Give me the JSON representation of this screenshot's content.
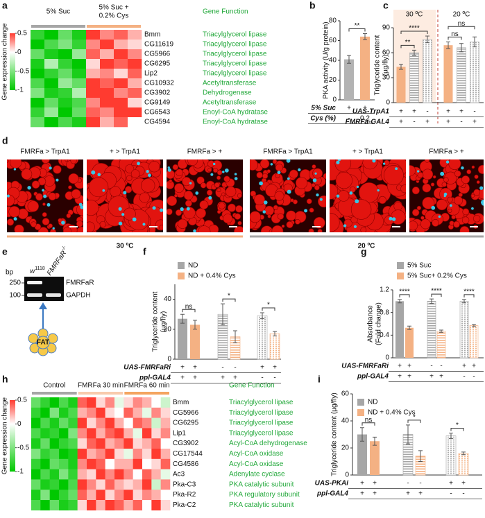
{
  "panel_labels": [
    "a",
    "b",
    "c",
    "d",
    "e",
    "f",
    "g",
    "h",
    "i"
  ],
  "chart_data": [
    {
      "type": "heatmap",
      "groups": [
        [
          "5% Suc"
        ],
        [
          "5% Suc +",
          "0.2% Cys"
        ]
      ],
      "group_colors": [
        "#a6a6a6",
        "#f4b183"
      ],
      "function_header": "Gene Function",
      "rows": [
        "Bmm",
        "CG11619",
        "CG5966",
        "CG6295",
        "Lip2",
        "CG10932",
        "CG3902",
        "CG9149",
        "CG6543",
        "CG4594"
      ],
      "functions": [
        "Triacylglycerol lipase",
        "Triacylglycerol lipase",
        "Triacylglycerol lipase",
        "Triacylglycerol lipase",
        "Triacylglycerol lipase",
        "Acetyltransferase",
        "Dehydrogenase",
        "Acetyltransferase",
        "Enoyl-CoA hydratase",
        "Enoyl-CoA hydratase"
      ],
      "values": [
        [
          -0.8,
          -1,
          -0.6,
          -0.9,
          0.5,
          0.3,
          0.4,
          0.2
        ],
        [
          -1,
          -0.7,
          -0.5,
          -0.8,
          0.3,
          0.5,
          0.2,
          0.1
        ],
        [
          -0.6,
          -0.9,
          -1,
          -0.4,
          0.4,
          0.2,
          0.5,
          0.3
        ],
        [
          -0.9,
          -0.3,
          -0.8,
          -1,
          0.1,
          0.5,
          0.4,
          0.5
        ],
        [
          -1,
          -0.8,
          -0.6,
          -0.9,
          0.2,
          0.3,
          0.1,
          0.4
        ],
        [
          -0.7,
          -1,
          -0.4,
          -0.6,
          0.5,
          0.4,
          0.5,
          0.2
        ],
        [
          -0.5,
          -0.9,
          -0.8,
          -0.3,
          0.5,
          0.5,
          0.3,
          0.4
        ],
        [
          -1,
          -0.6,
          -0.9,
          -0.7,
          0.3,
          0.5,
          0.5,
          0.1
        ],
        [
          -0.8,
          -0.4,
          -1,
          -0.6,
          0.4,
          0.3,
          0.5,
          0.5
        ],
        [
          -0.6,
          -1,
          -0.7,
          -0.9,
          0.5,
          0.2,
          0.4,
          0
        ]
      ],
      "vlim": [
        -1,
        0.5
      ],
      "colors": {
        "low": "#00c800",
        "mid": "#ffffff",
        "high": "#ff3b30"
      },
      "colorbar": {
        "label": "Gene expression change",
        "ticks": [
          0.5,
          0,
          -0.5,
          -1
        ]
      }
    },
    {
      "type": "bar",
      "ylabel": [
        "PKA activity (U/g protein)"
      ],
      "ylim": [
        0,
        80
      ],
      "yticks": [
        0,
        20,
        40,
        60,
        80
      ],
      "values": [
        41,
        64
      ],
      "errors": [
        4,
        3
      ],
      "colors": [
        "#b3b3b3",
        "#f4b183"
      ],
      "annotations": [
        "**"
      ],
      "conditions": [
        {
          "label": "5% Suc",
          "values": [
            "+",
            "+"
          ]
        },
        {
          "label": "Cys (%)",
          "values": [
            "-",
            "0.2"
          ]
        }
      ]
    },
    {
      "type": "bar",
      "ylabel": [
        "Triglyceride content",
        "(µg/fly)"
      ],
      "ylim": [
        0,
        90
      ],
      "yticks": [
        0,
        30,
        60,
        90
      ],
      "values": [
        43,
        60,
        76,
        69,
        66,
        73
      ],
      "errors": [
        3,
        3,
        4,
        4,
        5,
        6
      ],
      "colors": [
        "#f4b183",
        "#a6a6a6",
        "#a6a6a6",
        "#f4b183",
        "#a6a6a6",
        "#a6a6a6"
      ],
      "group_labels": [
        "30 ºC",
        "20 ºC"
      ],
      "group_label_color": "#e0603c",
      "annotations": [
        "**",
        "****",
        "ns",
        "ns"
      ],
      "conditions": [
        {
          "label": "UAS-TrpA1",
          "values": [
            "+",
            "+",
            "-",
            "+",
            "+",
            "-"
          ]
        },
        {
          "label": "FMRFa-GAL4",
          "values": [
            "+",
            "-",
            "+",
            "+",
            "-",
            "+"
          ]
        }
      ]
    },
    {
      "type": "grouped_bar",
      "ylabel": [
        "Triglyceride content",
        "(µg/fly)"
      ],
      "ylim": [
        0,
        50
      ],
      "yticks": [
        0,
        20,
        40
      ],
      "series": [
        {
          "name": "ND",
          "color": "#a6a6a6",
          "values": [
            27,
            30,
            29
          ],
          "errors": [
            3,
            7,
            2
          ]
        },
        {
          "name": "ND + 0.4% Cys",
          "color": "#f4b183",
          "values": [
            23,
            15,
            17
          ],
          "errors": [
            3,
            4,
            1.5
          ]
        }
      ],
      "annotations": [
        "ns",
        "*",
        "*"
      ],
      "conditions": [
        {
          "label": "UAS-FMRFaRi",
          "values": [
            "+",
            "+",
            "-",
            "-",
            "+",
            "+"
          ]
        },
        {
          "label": "ppl-GAL4",
          "values": [
            "+",
            "+",
            "+",
            "+",
            "-",
            "-"
          ]
        }
      ]
    },
    {
      "type": "grouped_bar",
      "ylabel": [
        "Absorbance",
        "(Fold change)"
      ],
      "ylim": [
        0,
        1.2
      ],
      "yticks": [
        0,
        0.4,
        0.8,
        1.2
      ],
      "series": [
        {
          "name": "5% Suc",
          "color": "#a6a6a6",
          "values": [
            1.0,
            1.0,
            1.0
          ],
          "errors": [
            0.03,
            0.04,
            0.03
          ]
        },
        {
          "name": "5% Suc+ 0.2% Cys",
          "color": "#f4b183",
          "values": [
            0.53,
            0.47,
            0.57
          ],
          "errors": [
            0.03,
            0.02,
            0.02
          ]
        }
      ],
      "annotations": [
        "****",
        "****",
        "****"
      ],
      "conditions": [
        {
          "label": "UAS-FMRFaRi",
          "values": [
            "+",
            "+",
            "-",
            "-",
            "+",
            "+"
          ]
        },
        {
          "label": "ppl-GAL4",
          "values": [
            "+",
            "+",
            "+",
            "+",
            "-",
            "-"
          ]
        }
      ]
    },
    {
      "type": "heatmap",
      "groups": [
        [
          "Control"
        ],
        [
          "FMRFa 30 min"
        ],
        [
          "FMRFa 60 min"
        ]
      ],
      "group_colors": [
        "#a6a6a6",
        "#f8cbad",
        "#f4a460"
      ],
      "function_header": "Gene Function",
      "rows": [
        "Bmm",
        "CG5966",
        "CG6295",
        "Lip1",
        "CG3902",
        "CG17544",
        "CG4586",
        "Ac3",
        "Pka-C3",
        "Pka-R2",
        "Pka-C2"
      ],
      "functions": [
        "Triacylglycerol lipase",
        "Triacylglycerol lipase",
        "Triacylglycerol lipase",
        "Triacylglycerol lipase",
        "Acyl-CoA dehydrogenase",
        "Acyl-CoA oxidase",
        "Acyl-CoA oxidase",
        "Adenylate cyclase",
        "PKA catalytic subunit",
        "PKA regulatory subunit",
        "PKA catalytic subunit"
      ],
      "values": [
        [
          -0.6,
          -0.8,
          -1,
          -0.7,
          -0.9,
          0.4,
          0.5,
          0.1,
          0.3,
          -0.1,
          0.1,
          0.3,
          0.2,
          0,
          -0.2
        ],
        [
          -0.8,
          -1,
          -0.5,
          -0.9,
          -0.7,
          0.2,
          0.3,
          0.5,
          0.1,
          0,
          0.4,
          0.2,
          -0.1,
          0.3,
          0.1
        ],
        [
          -1,
          -0.7,
          -0.9,
          -0.6,
          -0.8,
          0.5,
          0.1,
          0.3,
          0.5,
          0.2,
          0,
          0.4,
          0.3,
          -0.2,
          0.2
        ],
        [
          -0.7,
          -0.9,
          -0.8,
          -1,
          -0.5,
          0.3,
          0.5,
          0.2,
          0.4,
          0.5,
          0.2,
          -0.1,
          0.5,
          0.1,
          0.3
        ],
        [
          -0.9,
          -0.6,
          -1,
          -0.8,
          -0.7,
          0.1,
          0.4,
          0.5,
          0.2,
          0.3,
          0.5,
          0.1,
          0.2,
          0.4,
          0
        ],
        [
          -0.5,
          -0.8,
          -0.7,
          -1,
          -0.9,
          0.5,
          0.2,
          0.3,
          0.5,
          0.1,
          -0.1,
          0.3,
          0.1,
          0.5,
          0.2
        ],
        [
          -0.8,
          -1,
          -0.6,
          -0.7,
          -0.9,
          0.3,
          0.5,
          0.4,
          0,
          0.2,
          0.2,
          0.5,
          0,
          0.1,
          0.4
        ],
        [
          -1,
          -0.7,
          -0.9,
          -0.5,
          -0.8,
          0.2,
          0.1,
          0.5,
          0.3,
          0.5,
          0.3,
          0,
          0.4,
          0.2,
          -0.1
        ],
        [
          -0.6,
          -0.9,
          -0.8,
          -1,
          -0.7,
          0.5,
          0.3,
          0.1,
          0.4,
          0.2,
          0.1,
          0.2,
          0.5,
          -0.2,
          0.3
        ],
        [
          -0.9,
          -0.5,
          -1,
          -0.8,
          -0.6,
          0.4,
          0.2,
          0.5,
          0.1,
          0.3,
          0.5,
          0.1,
          0.3,
          0.2,
          0
        ],
        [
          -0.7,
          -1,
          -0.6,
          -0.9,
          -0.8,
          0.1,
          0.5,
          0.2,
          0.5,
          0.4,
          0.2,
          0.4,
          0,
          0.5,
          0.1
        ]
      ],
      "vlim": [
        -1,
        0.5
      ],
      "colors": {
        "low": "#00c800",
        "mid": "#ffffff",
        "high": "#ff3b30"
      },
      "colorbar": {
        "label": "Gene expression change",
        "ticks": [
          0.5,
          0,
          -0.5,
          -1
        ]
      }
    },
    {
      "type": "grouped_bar",
      "ylabel": [
        "Triglyceride content (µg/fly)"
      ],
      "ylim": [
        0,
        60
      ],
      "yticks": [
        0,
        20,
        40,
        60
      ],
      "series": [
        {
          "name": "ND",
          "color": "#a6a6a6",
          "values": [
            30,
            30,
            29
          ],
          "errors": [
            5,
            7,
            2
          ]
        },
        {
          "name": "ND + 0.4% Cys",
          "color": "#f4b183",
          "values": [
            25,
            14,
            16
          ],
          "errors": [
            3,
            4,
            1
          ]
        }
      ],
      "annotations": [
        "ns",
        "*",
        "*"
      ],
      "conditions": [
        {
          "label": "UAS-PKAi",
          "values": [
            "+",
            "+",
            "-",
            "-",
            "+",
            "+"
          ]
        },
        {
          "label": "ppl-GAL4",
          "values": [
            "+",
            "+",
            "+",
            "+",
            "-",
            "-"
          ]
        }
      ]
    }
  ],
  "panel_d": {
    "image_labels": [
      "FMRFa > TrpA1",
      "+ > TrpA1",
      "FMRFa > +",
      "FMRFa > TrpA1",
      "+ > TrpA1",
      "FMRFa > +"
    ],
    "temperatures": [
      "30 ºC",
      "20 ºC"
    ]
  },
  "panel_e": {
    "unit": "bp",
    "sizes": [
      250,
      100
    ],
    "lanes": [
      {
        "text": "w",
        "sup": "1118"
      },
      {
        "text": "FMRFaR",
        "sup": "-/-"
      }
    ],
    "bands": [
      "FMRFaR",
      "GAPDH"
    ],
    "tissue": "FAT"
  }
}
